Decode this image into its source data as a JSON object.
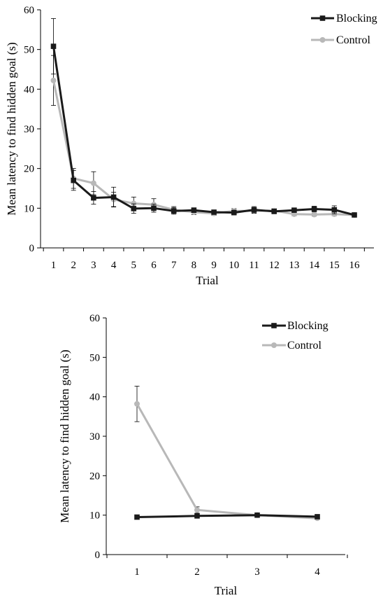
{
  "chart_data": [
    {
      "type": "line",
      "xlabel": "Trial",
      "ylabel": "Mean latency to find hidden goal (s)",
      "categories": [
        "1",
        "2",
        "3",
        "4",
        "5",
        "6",
        "7",
        "8",
        "9",
        "10",
        "11",
        "12",
        "13",
        "14",
        "15",
        "16"
      ],
      "ylim": [
        0,
        60
      ],
      "yticks": [
        0,
        10,
        20,
        30,
        40,
        50,
        60
      ],
      "grid": false,
      "legend_position": "top-right",
      "series": [
        {
          "name": "Blocking",
          "color": "#1a1a1a",
          "marker": "square",
          "values": [
            50.8,
            17.0,
            12.6,
            12.8,
            9.9,
            10.0,
            9.3,
            9.5,
            9.0,
            8.9,
            9.6,
            9.2,
            9.5,
            9.8,
            9.6,
            8.3
          ],
          "errors": [
            7.0,
            2.5,
            1.6,
            2.5,
            1.2,
            1.0,
            0.8,
            0.6,
            0.5,
            0.6,
            0.8,
            0.6,
            0.5,
            0.7,
            1.0,
            0.5
          ]
        },
        {
          "name": "Control",
          "color": "#b8b8b8",
          "marker": "circle",
          "values": [
            42.2,
            17.5,
            16.3,
            12.2,
            11.2,
            10.9,
            9.6,
            9.0,
            8.7,
            9.3,
            9.3,
            9.4,
            8.5,
            8.4,
            8.5,
            8.3
          ],
          "errors": [
            6.3,
            2.5,
            2.9,
            1.8,
            1.6,
            1.5,
            0.8,
            0.6,
            0.5,
            0.6,
            0.6,
            0.5,
            0.4,
            0.4,
            0.4,
            0.4
          ]
        }
      ]
    },
    {
      "type": "line",
      "xlabel": "Trial",
      "ylabel": "Mean latency to find hidden goal (s)",
      "categories": [
        "1",
        "2",
        "3",
        "4"
      ],
      "ylim": [
        0,
        60
      ],
      "yticks": [
        0,
        10,
        20,
        30,
        40,
        50,
        60
      ],
      "grid": false,
      "legend_position": "top-right",
      "series": [
        {
          "name": "Blocking",
          "color": "#1a1a1a",
          "marker": "square",
          "values": [
            9.5,
            9.8,
            10.0,
            9.6
          ],
          "errors": [
            0,
            0,
            0,
            0
          ]
        },
        {
          "name": "Control",
          "color": "#b8b8b8",
          "marker": "circle",
          "values": [
            38.2,
            11.3,
            10.0,
            9.2
          ],
          "errors": [
            4.5,
            0.8,
            0.3,
            0.3
          ]
        }
      ]
    }
  ]
}
